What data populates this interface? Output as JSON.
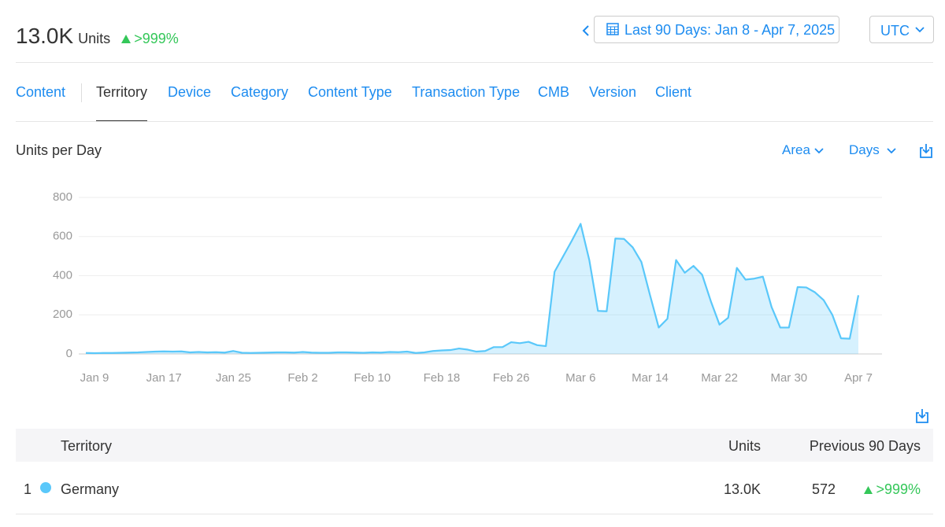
{
  "header": {
    "total": "13.0K",
    "unit": "Units",
    "change": ">999%",
    "date_range": "Last 90 Days: Jan 8 - Apr 7, 2025",
    "timezone": "UTC"
  },
  "tabs": [
    "Content",
    "Territory",
    "Device",
    "Category",
    "Content Type",
    "Transaction Type",
    "CMB",
    "Version",
    "Client"
  ],
  "active_tab": "Territory",
  "chart_data": {
    "type": "area",
    "title": "Units per Day",
    "controls": [
      "Area",
      "Days"
    ],
    "color": "#5ac8fa",
    "grid": true,
    "categories": [
      null,
      "Jan 9",
      null,
      null,
      null,
      null,
      null,
      null,
      null,
      "Jan 17",
      null,
      null,
      null,
      null,
      null,
      null,
      null,
      "Jan 25",
      null,
      null,
      null,
      null,
      null,
      null,
      null,
      "Feb 2",
      null,
      null,
      null,
      null,
      null,
      null,
      null,
      "Feb 10",
      null,
      null,
      null,
      null,
      null,
      null,
      null,
      "Feb 18",
      null,
      null,
      null,
      null,
      null,
      null,
      null,
      "Feb 26",
      null,
      null,
      null,
      null,
      null,
      null,
      null,
      "Mar 6",
      null,
      null,
      null,
      null,
      null,
      null,
      null,
      "Mar 14",
      null,
      null,
      null,
      null,
      null,
      null,
      null,
      "Mar 22",
      null,
      null,
      null,
      null,
      null,
      null,
      null,
      "Mar 30",
      null,
      null,
      null,
      null,
      null,
      null,
      null,
      "Apr 7"
    ],
    "values": [
      5,
      4,
      5,
      5,
      6,
      7,
      8,
      10,
      12,
      13,
      12,
      13,
      8,
      10,
      8,
      9,
      7,
      15,
      6,
      5,
      6,
      7,
      8,
      8,
      7,
      10,
      7,
      6,
      6,
      8,
      8,
      7,
      6,
      8,
      7,
      10,
      9,
      12,
      5,
      8,
      15,
      18,
      20,
      28,
      22,
      12,
      15,
      35,
      35,
      60,
      55,
      62,
      45,
      40,
      420,
      500,
      580,
      665,
      480,
      220,
      218,
      590,
      588,
      545,
      470,
      300,
      135,
      180,
      480,
      415,
      450,
      405,
      270,
      150,
      185,
      440,
      380,
      385,
      395,
      240,
      135,
      135,
      342,
      340,
      315,
      275,
      200,
      80,
      78,
      300
    ],
    "ylim": [
      0,
      800
    ],
    "yticks": [
      0,
      200,
      400,
      600,
      800
    ]
  },
  "table": {
    "columns": [
      "Territory",
      "Units",
      "Previous 90 Days"
    ],
    "rows": [
      {
        "rank": "1",
        "territory": "Germany",
        "units": "13.0K",
        "previous": "572",
        "change": ">999%"
      }
    ]
  }
}
